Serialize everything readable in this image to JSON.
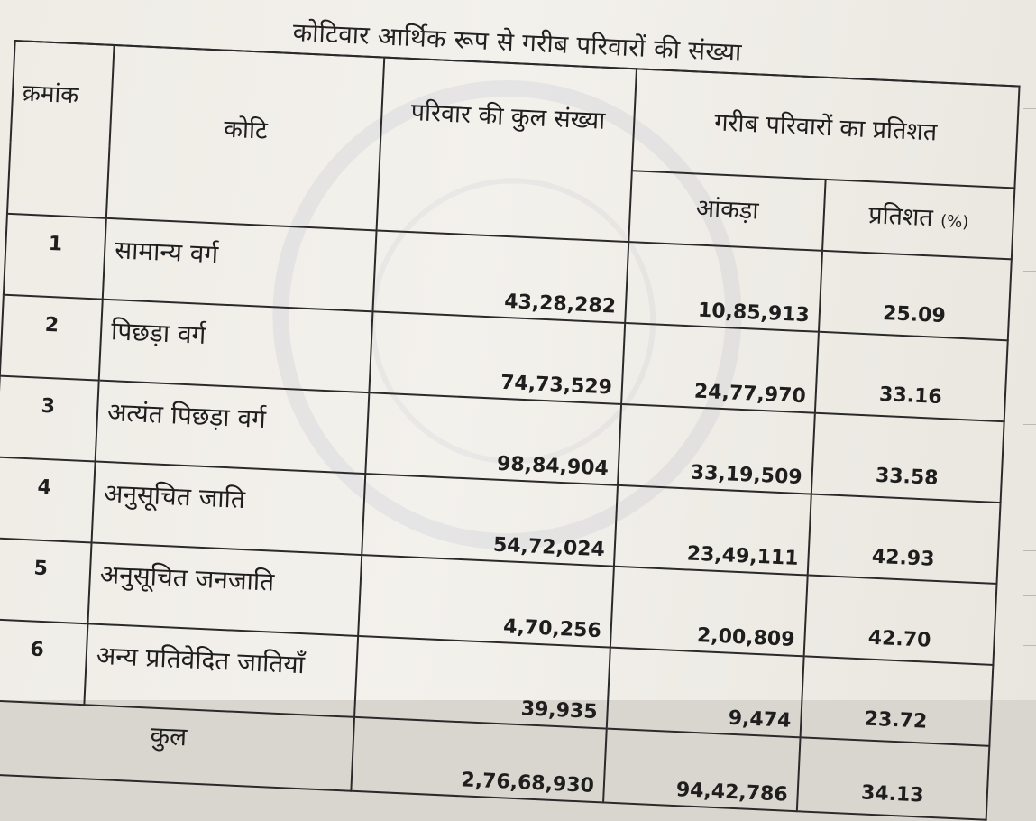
{
  "title": "कोटिवार आर्थिक रूप से गरीब परिवारों की संख्या",
  "headers": {
    "serial": "क्रमांक",
    "category": "कोटि",
    "total_families": "परिवार की कुल संख्या",
    "poor_percentage_group": "गरीब परिवारों का प्रतिशत",
    "count": "आंकड़ा",
    "percent": "प्रतिशत",
    "percent_unit": "(%)"
  },
  "rows": [
    {
      "sn": "1",
      "category": "सामान्य वर्ग",
      "total": "43,28,282",
      "count": "10,85,913",
      "percent": "25.09"
    },
    {
      "sn": "2",
      "category": "पिछड़ा वर्ग",
      "total": "74,73,529",
      "count": "24,77,970",
      "percent": "33.16"
    },
    {
      "sn": "3",
      "category": "अत्यंत पिछड़ा वर्ग",
      "total": "98,84,904",
      "count": "33,19,509",
      "percent": "33.58"
    },
    {
      "sn": "4",
      "category": "अनुसूचित जाति",
      "total": "54,72,024",
      "count": "23,49,111",
      "percent": "42.93"
    },
    {
      "sn": "5",
      "category": "अनुसूचित जनजाति",
      "total": "4,70,256",
      "count": "2,00,809",
      "percent": "42.70"
    },
    {
      "sn": "6",
      "category": "अन्य प्रतिवेदित जातियाँ",
      "total": "39,935",
      "count": "9,474",
      "percent": "23.72"
    }
  ],
  "total_row": {
    "label": "कुल",
    "total": "2,76,68,930",
    "count": "94,42,786",
    "percent": "34.13"
  }
}
